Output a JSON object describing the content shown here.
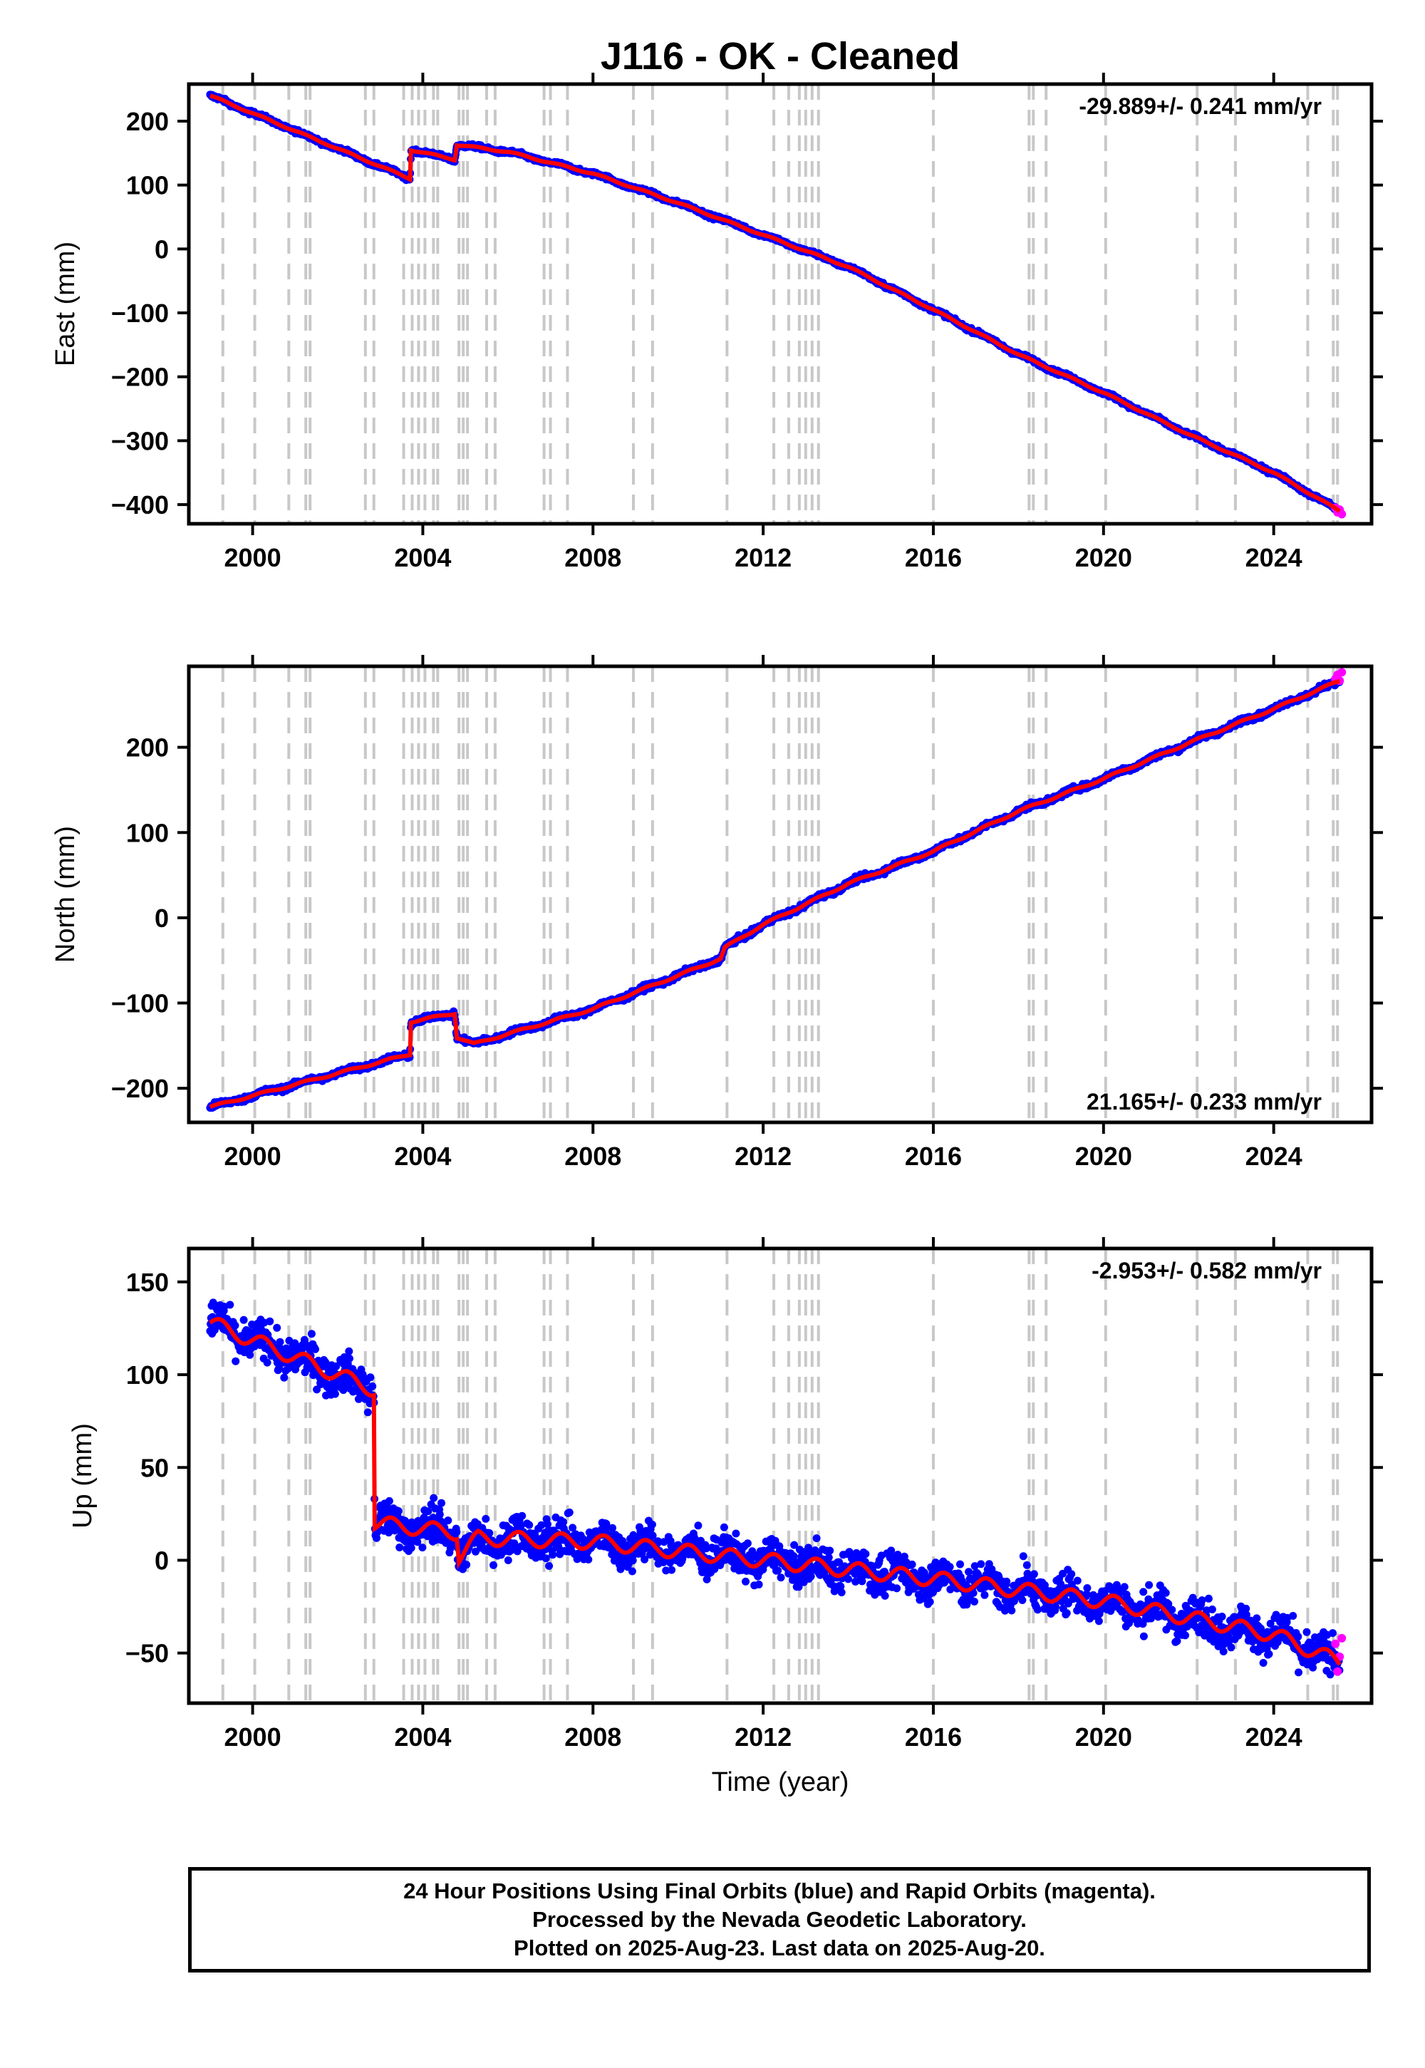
{
  "title": "J116  - OK - Cleaned",
  "colors": {
    "final_orbits": "#0000ff",
    "rapid_orbits": "#ff00ff",
    "model": "#ff0000",
    "event_lines": "#c8c8c8",
    "frame": "#000000"
  },
  "footer": {
    "line1": "24 Hour Positions Using Final Orbits (blue) and Rapid Orbits (magenta).",
    "line2": "Processed by the Nevada Geodetic Laboratory.",
    "line3": "Plotted on 2025-Aug-23. Last data on 2025-Aug-20."
  },
  "chart_data": [
    {
      "type": "scatter",
      "panel": "east",
      "xlabel": "",
      "ylabel": "East (mm)",
      "xlim": [
        1998.5,
        2026.3
      ],
      "ylim": [
        -430,
        258
      ],
      "xticks": [
        2000,
        2004,
        2008,
        2012,
        2016,
        2020,
        2024
      ],
      "yticks": [
        -400,
        -300,
        -200,
        -100,
        0,
        100,
        200
      ],
      "rate_text": "-29.889+/- 0.241 mm/yr",
      "rate_position": "top-right",
      "trend": {
        "x": [
          1999.0,
          2003.7,
          2003.72,
          2004.75,
          2004.8,
          2006.0,
          2008.0,
          2010.0,
          2012.0,
          2014.0,
          2016.0,
          2018.0,
          2020.0,
          2022.0,
          2024.0,
          2025.55
        ],
        "y": [
          240,
          110,
          155,
          140,
          163,
          152,
          118,
          72,
          22,
          -28,
          -95,
          -165,
          -225,
          -290,
          -350,
          -410
        ]
      },
      "rapid": {
        "x": [
          2025.45,
          2025.5,
          2025.55,
          2025.6
        ],
        "y": [
          -405,
          -412,
          -408,
          -415
        ]
      }
    },
    {
      "type": "scatter",
      "panel": "north",
      "xlabel": "",
      "ylabel": "North (mm)",
      "xlim": [
        1998.5,
        2026.3
      ],
      "ylim": [
        -240,
        295
      ],
      "xticks": [
        2000,
        2004,
        2008,
        2012,
        2016,
        2020,
        2024
      ],
      "yticks": [
        -200,
        -100,
        0,
        100,
        200
      ],
      "rate_text": "21.165+/- 0.233 mm/yr",
      "rate_position": "bottom-right",
      "trend": {
        "x": [
          1999.0,
          2003.7,
          2003.72,
          2004.75,
          2004.8,
          2005.2,
          2008.0,
          2011.0,
          2011.1,
          2012.0,
          2014.0,
          2016.0,
          2018.0,
          2020.0,
          2022.0,
          2024.0,
          2025.55
        ],
        "y": [
          -222,
          -160,
          -122,
          -112,
          -140,
          -148,
          -107,
          -48,
          -35,
          -8,
          40,
          78,
          125,
          163,
          205,
          245,
          278
        ]
      },
      "rapid": {
        "x": [
          2025.45,
          2025.5,
          2025.55,
          2025.6
        ],
        "y": [
          280,
          285,
          278,
          288
        ]
      }
    },
    {
      "type": "scatter",
      "panel": "up",
      "xlabel": "Time (year)",
      "ylabel": "Up (mm)",
      "xlim": [
        1998.5,
        2026.3
      ],
      "ylim": [
        -77,
        168
      ],
      "xticks": [
        2000,
        2004,
        2008,
        2012,
        2016,
        2020,
        2024
      ],
      "yticks": [
        -50,
        0,
        50,
        100,
        150
      ],
      "rate_text": "-2.953+/- 0.582 mm/yr",
      "rate_position": "top-right",
      "trend": {
        "x": [
          1999.0,
          2002.85,
          2002.87,
          2004.8,
          2004.85,
          2005.3,
          2008.0,
          2012.0,
          2016.0,
          2020.0,
          2024.0,
          2025.55
        ],
        "y": [
          128,
          92,
          20,
          15,
          2,
          12,
          10,
          0,
          -10,
          -22,
          -40,
          -55
        ]
      },
      "rapid": {
        "x": [
          2025.45,
          2025.5,
          2025.55,
          2025.6
        ],
        "y": [
          -45,
          -60,
          -52,
          -42
        ]
      }
    }
  ],
  "event_years": [
    1999.3,
    2000.05,
    2000.85,
    2001.25,
    2001.35,
    2002.65,
    2002.85,
    2003.55,
    2003.75,
    2003.9,
    2004.05,
    2004.25,
    2004.35,
    2004.85,
    2004.95,
    2005.05,
    2005.5,
    2005.7,
    2006.85,
    2007.0,
    2007.4,
    2008.95,
    2009.4,
    2011.15,
    2012.25,
    2012.6,
    2012.85,
    2013.0,
    2013.15,
    2013.3,
    2016.0,
    2018.25,
    2018.35,
    2018.65,
    2020.05,
    2022.2,
    2023.1,
    2024.8,
    2025.4,
    2025.5
  ]
}
